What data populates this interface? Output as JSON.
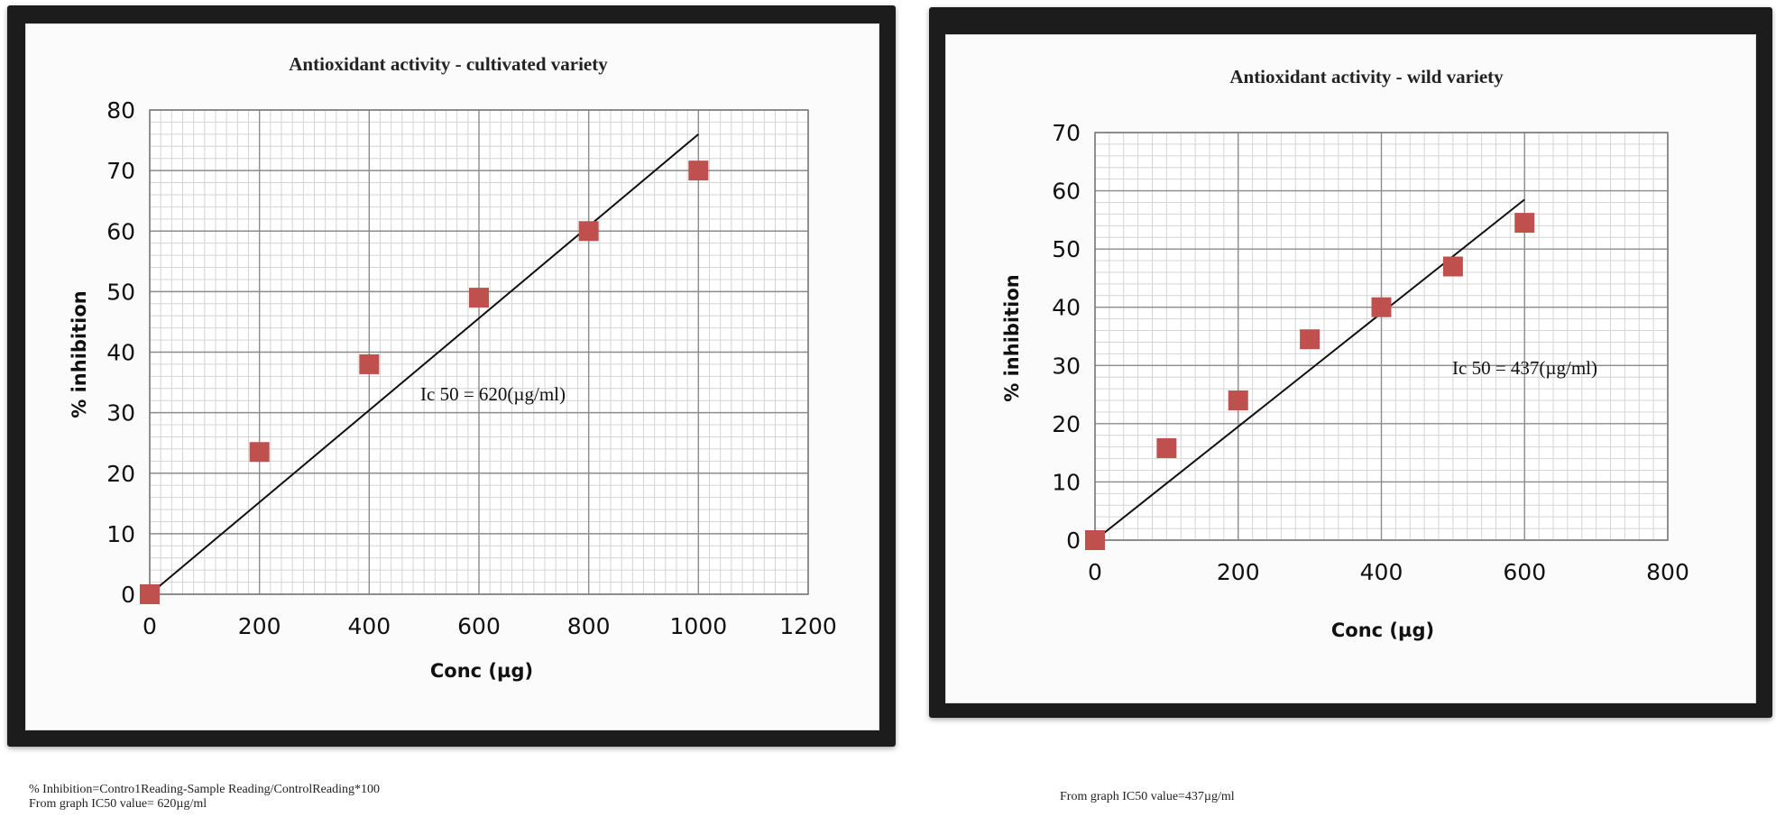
{
  "chart_data": [
    {
      "type": "scatter",
      "title": "Antioxidant activity - cultivated variety",
      "xlabel": "Conc (µg)",
      "ylabel": "% inhibition",
      "xlim": [
        0,
        1200
      ],
      "ylim": [
        0,
        80
      ],
      "xticks": [
        0,
        200,
        400,
        600,
        800,
        1000,
        1200
      ],
      "yticks": [
        0,
        10,
        20,
        30,
        40,
        50,
        60,
        70,
        80
      ],
      "x": [
        0,
        200,
        400,
        600,
        800,
        1000
      ],
      "y": [
        0,
        23.5,
        38,
        49,
        60,
        70
      ],
      "trendline": {
        "type": "linear",
        "x": [
          0,
          1000
        ],
        "y": [
          0,
          76
        ]
      },
      "annotation": "Ic 50 = 620(µg/ml)",
      "marker_color": "#c0504d",
      "grid": true
    },
    {
      "type": "scatter",
      "title": "Antioxidant activity - wild variety",
      "xlabel": "Conc (µg)",
      "ylabel": "% inhibition",
      "xlim": [
        0,
        800
      ],
      "ylim": [
        0,
        70
      ],
      "xticks": [
        0,
        200,
        400,
        600,
        800
      ],
      "yticks": [
        0,
        10,
        20,
        30,
        40,
        50,
        60,
        70
      ],
      "x": [
        0,
        100,
        200,
        300,
        400,
        500,
        600
      ],
      "y": [
        0,
        15.8,
        24,
        34.5,
        40,
        47,
        54.5
      ],
      "trendline": {
        "type": "linear",
        "x": [
          0,
          600
        ],
        "y": [
          0,
          58.5
        ]
      },
      "annotation": "Ic 50 = 437(µg/ml)",
      "marker_color": "#c0504d",
      "grid": true
    }
  ],
  "notes": {
    "left_line1": "% Inhibition=Contro1Reading-Sample Reading/ControlReading*100",
    "left_line2": "From graph IC50 value= 620µg/ml",
    "right_line1": "From graph IC50 value=437µg/ml"
  }
}
